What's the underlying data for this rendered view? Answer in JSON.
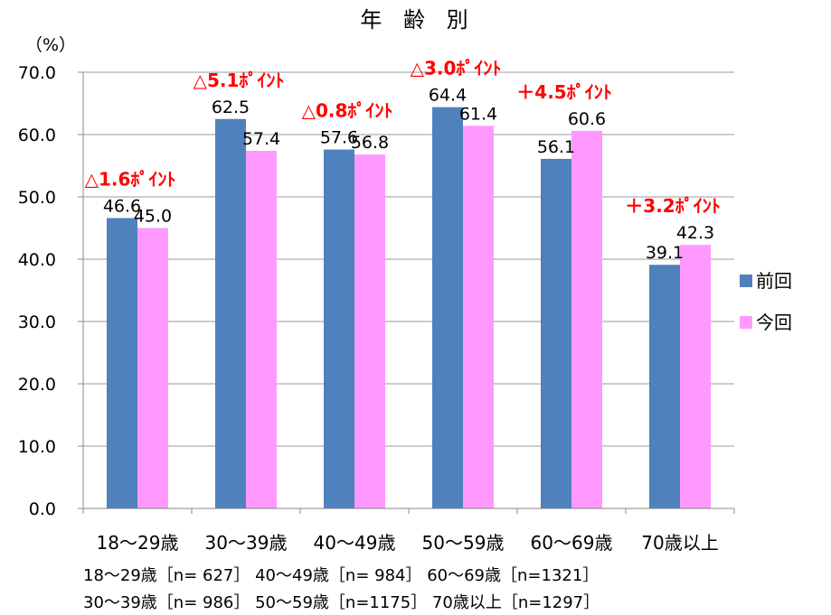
{
  "chart_data": {
    "type": "bar",
    "title": "年 齢 別",
    "ylabel": "（%）",
    "ylim": [
      0,
      70
    ],
    "yticks": [
      "0.0",
      "10.0",
      "20.0",
      "30.0",
      "40.0",
      "50.0",
      "60.0",
      "70.0"
    ],
    "categories": [
      "18〜29歳",
      "30〜39歳",
      "40〜49歳",
      "50〜59歳",
      "60〜69歳",
      "70歳以上"
    ],
    "series": [
      {
        "name": "前回",
        "color": "#4f81bd",
        "values": [
          46.6,
          62.5,
          57.6,
          64.4,
          56.1,
          39.1
        ],
        "labels": [
          "46.6",
          "62.5",
          "57.6",
          "64.4",
          "56.1",
          "39.1"
        ]
      },
      {
        "name": "今回",
        "color": "#ff99ff",
        "values": [
          45.0,
          57.4,
          56.8,
          61.4,
          60.6,
          42.3
        ],
        "labels": [
          "45.0",
          "57.4",
          "56.8",
          "61.4",
          "60.6",
          "42.3"
        ]
      }
    ],
    "annotations": [
      "△1.6ﾎﾟｲﾝﾄ",
      "△5.1ﾎﾟｲﾝﾄ",
      "△0.8ﾎﾟｲﾝﾄ",
      "△3.0ﾎﾟｲﾝﾄ",
      "＋4.5ﾎﾟｲﾝﾄ",
      "＋3.2ﾎﾟｲﾝﾄ"
    ],
    "annotation_color": "#ff0000",
    "legend_position": "right",
    "grid": true
  },
  "notes": {
    "line1": "18〜29歳［n= 627］ 40〜49歳［n= 984］ 60〜69歳［n=1321］",
    "line2": "30〜39歳［n= 986］ 50〜59歳［n=1175］ 70歳以上［n=1297］"
  }
}
